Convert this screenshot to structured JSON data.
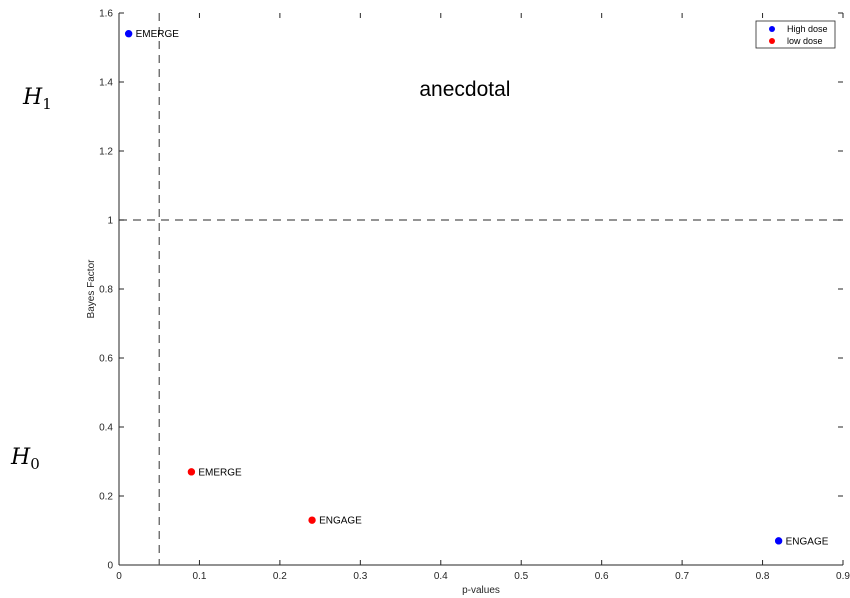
{
  "chart_data": {
    "type": "scatter",
    "xlabel": "p-values",
    "ylabel": "Bayes Factor",
    "xlim": [
      0,
      0.9
    ],
    "ylim": [
      0,
      1.6
    ],
    "xticks": [
      0,
      0.1,
      0.2,
      0.3,
      0.4,
      0.5,
      0.6,
      0.7,
      0.8,
      0.9
    ],
    "xtick_labels": [
      "0",
      "0.1",
      "0.2",
      "0.3",
      "0.4",
      "0.5",
      "0.6",
      "0.7",
      "0.8",
      "0.9"
    ],
    "yticks": [
      0,
      0.2,
      0.4,
      0.6,
      0.8,
      1,
      1.2,
      1.4,
      1.6
    ],
    "ytick_labels": [
      "0",
      "0.2",
      "0.4",
      "0.6",
      "0.8",
      "1",
      "1.2",
      "1.4",
      "1.6"
    ],
    "grid": false,
    "legend_position": "top-right",
    "series": [
      {
        "name": "High dose",
        "color": "#0000ff",
        "points": [
          {
            "x": 0.012,
            "y": 1.54,
            "label": "EMERGE"
          },
          {
            "x": 0.82,
            "y": 0.07,
            "label": "ENGAGE"
          }
        ]
      },
      {
        "name": "low dose",
        "color": "#ff0000",
        "points": [
          {
            "x": 0.09,
            "y": 0.27,
            "label": "EMERGE"
          },
          {
            "x": 0.24,
            "y": 0.13,
            "label": "ENGAGE"
          }
        ]
      }
    ],
    "reference_lines": [
      {
        "orientation": "horizontal",
        "value": 1,
        "style": "dashed"
      },
      {
        "orientation": "vertical",
        "value": 0.05,
        "style": "dashed"
      }
    ],
    "annotations": [
      {
        "text": "anecdotal",
        "x": 0.43,
        "y": 1.38
      }
    ]
  },
  "hypotheses": {
    "h1": {
      "base": "H",
      "sub": "1"
    },
    "h0": {
      "base": "H",
      "sub": "0"
    }
  }
}
